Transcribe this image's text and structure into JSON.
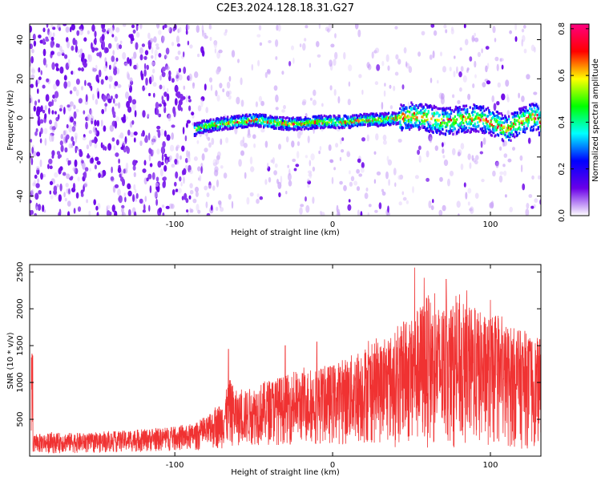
{
  "title": "C2E3.2024.128.18.31.G27",
  "chart_data": [
    {
      "type": "heatmap",
      "xlabel": "Height of straight line (km)",
      "ylabel": "Frequency (Hz)",
      "xlim": [
        -192,
        132
      ],
      "ylim": [
        -50,
        48
      ],
      "xticks": [
        -100,
        0,
        100
      ],
      "yticks": [
        -40,
        -20,
        0,
        20,
        40
      ],
      "colorbar": {
        "label": "Normalized spectral amplitude",
        "range": [
          0,
          0.82
        ],
        "ticks": [
          0.0,
          0.2,
          0.4,
          0.6,
          0.8
        ],
        "colors": [
          "#ffffff",
          "#6a00e8",
          "#0000ff",
          "#00ffff",
          "#00ff00",
          "#ffff00",
          "#ff0000",
          "#ff0080"
        ]
      },
      "signal_track": {
        "x_start": -88,
        "x_end": 132,
        "center_freq_hz": -2,
        "points": [
          {
            "x": -88,
            "y": -6
          },
          {
            "x": -80,
            "y": -4
          },
          {
            "x": -70,
            "y": -3
          },
          {
            "x": -60,
            "y": -2
          },
          {
            "x": -50,
            "y": -1
          },
          {
            "x": -40,
            "y": -2
          },
          {
            "x": -30,
            "y": -3
          },
          {
            "x": -20,
            "y": -3
          },
          {
            "x": -10,
            "y": -2
          },
          {
            "x": 0,
            "y": -2
          },
          {
            "x": 10,
            "y": -2
          },
          {
            "x": 20,
            "y": -1
          },
          {
            "x": 30,
            "y": -1
          },
          {
            "x": 40,
            "y": 0
          },
          {
            "x": 50,
            "y": 1
          },
          {
            "x": 60,
            "y": 0
          },
          {
            "x": 70,
            "y": -2
          },
          {
            "x": 80,
            "y": -1
          },
          {
            "x": 90,
            "y": 0
          },
          {
            "x": 100,
            "y": -2
          },
          {
            "x": 110,
            "y": -6
          },
          {
            "x": 120,
            "y": -1
          },
          {
            "x": 130,
            "y": 1
          }
        ]
      }
    },
    {
      "type": "line",
      "xlabel": "Height of straight line (km)",
      "ylabel": "SNR (10 * v/v)",
      "xlim": [
        -192,
        132
      ],
      "ylim": [
        0,
        2600
      ],
      "xticks": [
        -100,
        0,
        100
      ],
      "yticks": [
        500,
        1000,
        1500,
        2000,
        2500
      ],
      "color": "#f03232",
      "series": [
        {
          "x": [
            -190,
            -170,
            -150,
            -130,
            -110,
            -90,
            -80,
            -70,
            -65,
            -60,
            -50,
            -40,
            -30,
            -20,
            -10,
            0,
            10,
            20,
            30,
            40,
            50,
            60,
            70,
            80,
            90,
            100,
            110,
            120,
            130
          ],
          "upper": [
            300,
            320,
            310,
            350,
            380,
            420,
            520,
            750,
            1050,
            850,
            950,
            1050,
            1100,
            1150,
            1200,
            1250,
            1350,
            1500,
            1550,
            1700,
            1900,
            2200,
            2000,
            2100,
            2000,
            1900,
            1800,
            1700,
            1600
          ],
          "lower": [
            30,
            40,
            40,
            50,
            60,
            70,
            80,
            100,
            120,
            130,
            140,
            150,
            150,
            150,
            150,
            150,
            150,
            150,
            150,
            120,
            100,
            100,
            100,
            100,
            100,
            100,
            100,
            100,
            100
          ],
          "peaks": [
            [
              -66,
              1450
            ],
            [
              -30,
              1500
            ],
            [
              -10,
              1550
            ],
            [
              45,
              1820
            ],
            [
              52,
              2560
            ],
            [
              58,
              2420
            ],
            [
              72,
              2400
            ],
            [
              85,
              2250
            ],
            [
              100,
              2120
            ]
          ]
        }
      ]
    }
  ]
}
